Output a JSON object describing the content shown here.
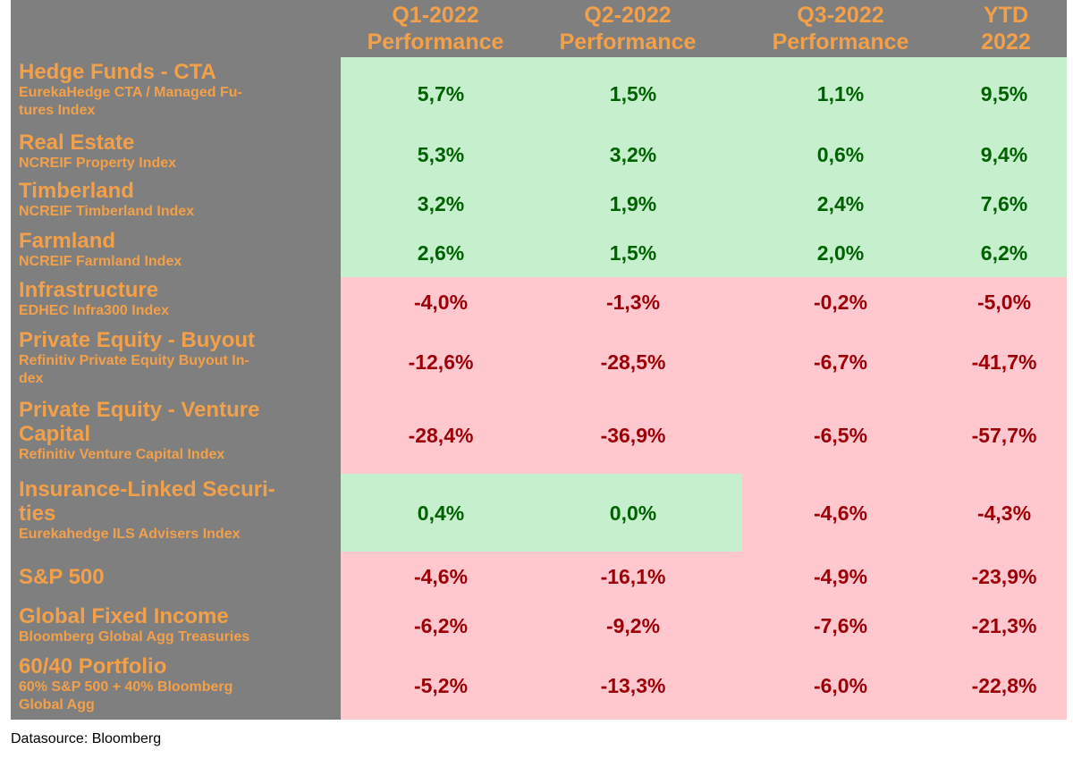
{
  "chart_data": {
    "type": "table",
    "title": "",
    "columns": [
      {
        "line1": "Q1-2022",
        "line2": "Performance"
      },
      {
        "line1": "Q2-2022",
        "line2": "Performance"
      },
      {
        "line1": "Q3-2022",
        "line2": "Performance"
      },
      {
        "line1": "YTD",
        "line2": "2022"
      }
    ],
    "rows": [
      {
        "name": "Hedge Funds - CTA",
        "index": "EurekaHedge CTA / Managed Futures Index",
        "values": [
          "5,7%",
          "1,5%",
          "1,1%",
          "9,5%"
        ]
      },
      {
        "name": "Real Estate",
        "index": "NCREIF Property Index",
        "values": [
          "5,3%",
          "3,2%",
          "0,6%",
          "9,4%"
        ]
      },
      {
        "name": "Timberland",
        "index": "NCREIF Timberland Index",
        "values": [
          "3,2%",
          "1,9%",
          "2,4%",
          "7,6%"
        ]
      },
      {
        "name": "Farmland",
        "index": "NCREIF Farmland Index",
        "values": [
          "2,6%",
          "1,5%",
          "2,0%",
          "6,2%"
        ]
      },
      {
        "name": "Infrastructure",
        "index": "EDHEC Infra300 Index",
        "values": [
          "-4,0%",
          "-1,3%",
          "-0,2%",
          "-5,0%"
        ]
      },
      {
        "name": "Private Equity - Buyout",
        "index": "Refinitiv Private Equity Buyout Index",
        "values": [
          "-12,6%",
          "-28,5%",
          "-6,7%",
          "-41,7%"
        ]
      },
      {
        "name": "Private Equity - Venture Capital",
        "index": "Refinitiv Venture Capital Index",
        "values": [
          "-28,4%",
          "-36,9%",
          "-6,5%",
          "-57,7%"
        ]
      },
      {
        "name": "Insurance-Linked Securities",
        "index": "Eurekahedge ILS Advisers Index",
        "values": [
          "0,4%",
          "0,0%",
          "-4,6%",
          "-4,3%"
        ]
      },
      {
        "name": "S&P 500",
        "index": "",
        "values": [
          "-4,6%",
          "-16,1%",
          "-4,9%",
          "-23,9%"
        ]
      },
      {
        "name": "Global Fixed Income",
        "index": "Bloomberg Global Agg Treasuries",
        "values": [
          "-6,2%",
          "-9,2%",
          "-7,6%",
          "-21,3%"
        ]
      },
      {
        "name": "60/40 Portfolio",
        "index": "60% S&P 500 + 40% Bloomberg Global Agg",
        "values": [
          "-5,2%",
          "-13,3%",
          "-6,0%",
          "-22,8%"
        ]
      }
    ],
    "colors": {
      "label_bg": "#7f7f7f",
      "label_text": "#f2a04a",
      "positive_bg": "#c6efce",
      "positive_text": "#006100",
      "negative_bg": "#ffc7ce",
      "negative_text": "#9c0006"
    }
  },
  "labels": {
    "hedge_title": "Hedge Funds - CTA",
    "hedge_sub1": "EurekaHedge CTA / Managed Fu-",
    "hedge_sub2": "tures Index",
    "re_title": "Real Estate",
    "re_sub": "NCREIF Property Index",
    "timber_title": "Timberland",
    "timber_sub": "NCREIF Timberland Index",
    "farm_title": "Farmland",
    "farm_sub": "NCREIF Farmland Index",
    "infra_title": "Infrastructure",
    "infra_sub": "EDHEC Infra300 Index",
    "peb_title": "Private Equity - Buyout",
    "peb_sub1": "Refinitiv Private Equity Buyout In-",
    "peb_sub2": "dex",
    "pevc_title1": "Private Equity - Venture",
    "pevc_title2": "Capital",
    "pevc_sub": "Refinitiv Venture Capital Index",
    "ils_title1": "Insurance-Linked Securi-",
    "ils_title2": "ties",
    "ils_sub": "Eurekahedge ILS Advisers Index",
    "sp_title": "S&P 500",
    "gfi_title": "Global Fixed Income",
    "gfi_sub": "Bloomberg Global Agg Treasuries",
    "p6040_title": "60/40 Portfolio",
    "p6040_sub1": "60% S&P 500 + 40% Bloomberg",
    "p6040_sub2": "Global Agg"
  },
  "footnote": "Datasource: Bloomberg"
}
